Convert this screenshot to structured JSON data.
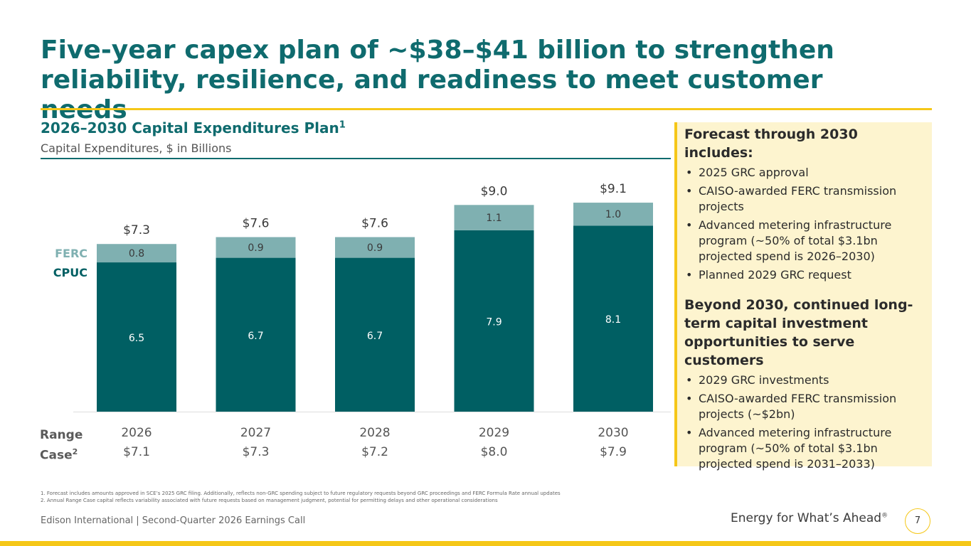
{
  "slide": {
    "title_line1": "Five-year capex plan of ~$38–$41 billion to strengthen",
    "title_line2": "reliability, resilience, and readiness to meet customer needs",
    "accent_color": "#f5c718",
    "brand_color": "#0f6b6e"
  },
  "chart_data": {
    "type": "bar",
    "stacked": true,
    "title": "2026–2030 Capital Expenditures Plan",
    "title_sup": "1",
    "subtitle": "Capital Expenditures, $ in Billions",
    "categories": [
      "2026",
      "2027",
      "2028",
      "2029",
      "2030"
    ],
    "series": [
      {
        "name": "CPUC",
        "values": [
          6.5,
          6.7,
          6.7,
          7.9,
          8.1
        ],
        "labels": [
          "6.5",
          "6.7",
          "6.7",
          "7.9",
          "8.1"
        ],
        "color": "#005f63",
        "label_color": "#ffffff"
      },
      {
        "name": "FERC",
        "values": [
          0.8,
          0.9,
          0.9,
          1.1,
          1.0
        ],
        "labels": [
          "0.8",
          "0.9",
          "0.9",
          "1.1",
          "1.0"
        ],
        "color": "#7fb0b1",
        "label_color": "#3a3a3a"
      }
    ],
    "totals": [
      "$7.3",
      "$7.6",
      "$7.6",
      "$9.0",
      "$9.1"
    ],
    "range_case_label": "Range",
    "range_case_label2": "Case",
    "range_case_sup": "2",
    "range_case": [
      "$7.1",
      "$7.3",
      "$7.2",
      "$8.0",
      "$7.9"
    ],
    "ylim": [
      0,
      10
    ],
    "grid": false,
    "legend": "left"
  },
  "panel": {
    "heading1": "Forecast through 2030 includes:",
    "items1": [
      "2025 GRC approval",
      "CAISO-awarded FERC transmission projects",
      "Advanced metering infrastructure program (~50% of total $3.1bn projected spend is 2026–2030)",
      "Planned 2029 GRC request"
    ],
    "heading2": "Beyond 2030, continued long-term capital investment opportunities to serve customers",
    "items2": [
      "2029 GRC investments",
      "CAISO-awarded FERC transmission projects (~$2bn)",
      "Advanced metering infrastructure program (~50% of total $3.1bn projected spend is 2031–2033)"
    ]
  },
  "footnotes": {
    "note1": "1.   Forecast includes amounts approved in SCE’s 2025 GRC filing. Additionally, reflects non-GRC spending subject to future regulatory requests beyond GRC proceedings and FERC Formula Rate annual updates",
    "note2": "2.   Annual Range Case capital reflects variability associated with future requests based on management judgment, potential for permitting delays and other operational considerations"
  },
  "footer": {
    "left": "Edison International |  Second-Quarter 2026 Earnings Call",
    "tagline": "Energy for What’s Ahead",
    "tagline_mark": "®",
    "page_number": "7"
  }
}
